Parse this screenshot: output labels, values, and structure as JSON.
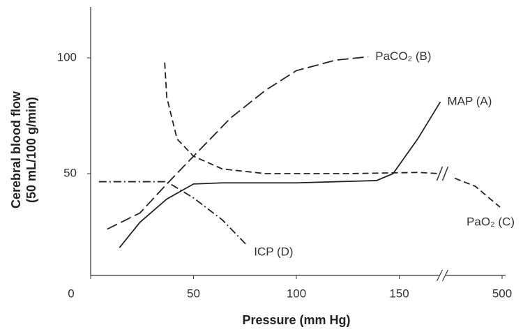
{
  "chart_data": {
    "type": "line",
    "ylabel": [
      "Cerebral blood flow",
      "(50 mL/100 g/min)"
    ],
    "xlabel": "Pressure (mm Hg)",
    "xlim": [
      0,
      500
    ],
    "x_break": [
      170,
      470
    ],
    "xticks": [
      0,
      50,
      100,
      150,
      500
    ],
    "ylim": [
      6,
      122
    ],
    "yticks": [
      50,
      100
    ],
    "series": [
      {
        "name": "MAP (A)",
        "color": "#222222",
        "style": "solid",
        "x": [
          14,
          24,
          37,
          50,
          64,
          100,
          139,
          147,
          159,
          170
        ],
        "values": [
          18,
          29,
          39,
          45.5,
          46,
          46,
          47,
          50,
          65,
          81
        ]
      },
      {
        "name": "PaCO₂ (B)",
        "color": "#222222",
        "style": "long-dash",
        "x": [
          8,
          24,
          37,
          50,
          68,
          85,
          100,
          119,
          135
        ],
        "values": [
          26,
          33,
          45.5,
          57.5,
          74,
          86,
          94.5,
          99,
          100.5
        ]
      },
      {
        "name": "PaO₂ (C)",
        "color": "#222222",
        "style": "dash",
        "x": [
          36,
          37,
          42,
          50,
          64,
          85,
          125,
          159,
          170,
          477,
          487,
          499
        ],
        "values": [
          98,
          83,
          65,
          57.5,
          52,
          50,
          50,
          50.5,
          50,
          48,
          44.5,
          35.5
        ]
      },
      {
        "name": "ICP (D)",
        "color": "#222222",
        "style": "dash-dot",
        "x": [
          4,
          37,
          50,
          64,
          76
        ],
        "values": [
          46.5,
          46.5,
          39.5,
          30,
          19
        ]
      }
    ]
  }
}
